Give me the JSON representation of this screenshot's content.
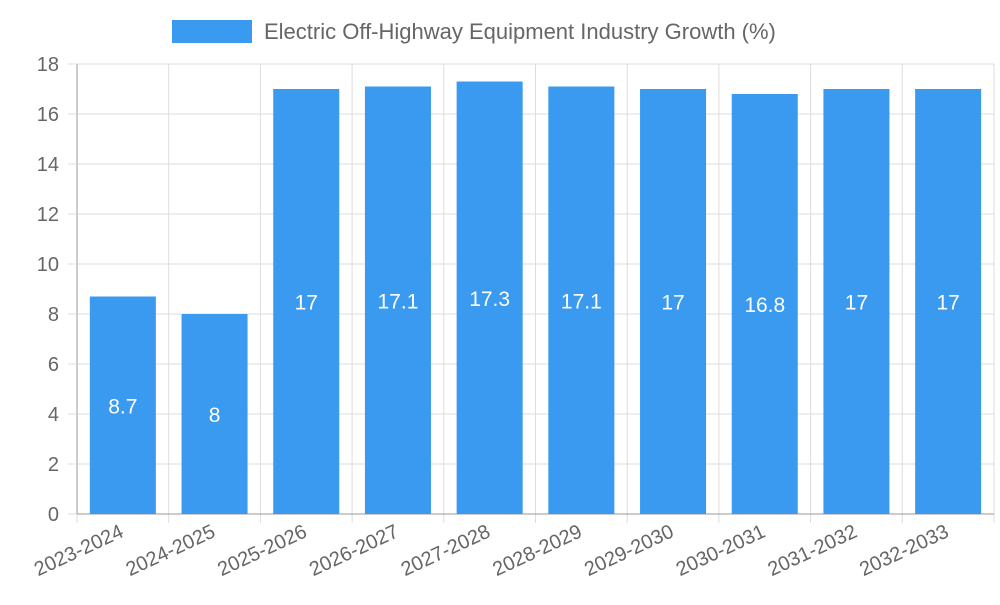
{
  "chart_data": {
    "type": "bar",
    "legend": {
      "position": "top-center",
      "label": "Electric Off-Highway Equipment Industry Growth (%)"
    },
    "categories": [
      "2023-2024",
      "2024-2025",
      "2025-2026",
      "2026-2027",
      "2027-2028",
      "2028-2029",
      "2029-2030",
      "2030-2031",
      "2031-2032",
      "2032-2033"
    ],
    "series": [
      {
        "name": "Electric Off-Highway Equipment Industry Growth (%)",
        "values": [
          8.7,
          8,
          17,
          17.1,
          17.3,
          17.1,
          17,
          16.8,
          17,
          17
        ],
        "labels": [
          "8.7",
          "8",
          "17",
          "17.1",
          "17.3",
          "17.1",
          "17",
          "16.8",
          "17",
          "17"
        ]
      }
    ],
    "ylim": [
      0,
      18
    ],
    "yticks": [
      0,
      2,
      4,
      6,
      8,
      10,
      12,
      14,
      16,
      18
    ],
    "ytick_labels": [
      "0",
      "2",
      "4",
      "6",
      "8",
      "10",
      "12",
      "14",
      "16",
      "18"
    ],
    "grid": true,
    "xlabel": "",
    "ylabel": ""
  },
  "colors": {
    "bar": "#3a9af0",
    "grid": "#dddddd",
    "axis": "#999999",
    "tick_text": "#666666",
    "data_label": "#ffffff"
  }
}
